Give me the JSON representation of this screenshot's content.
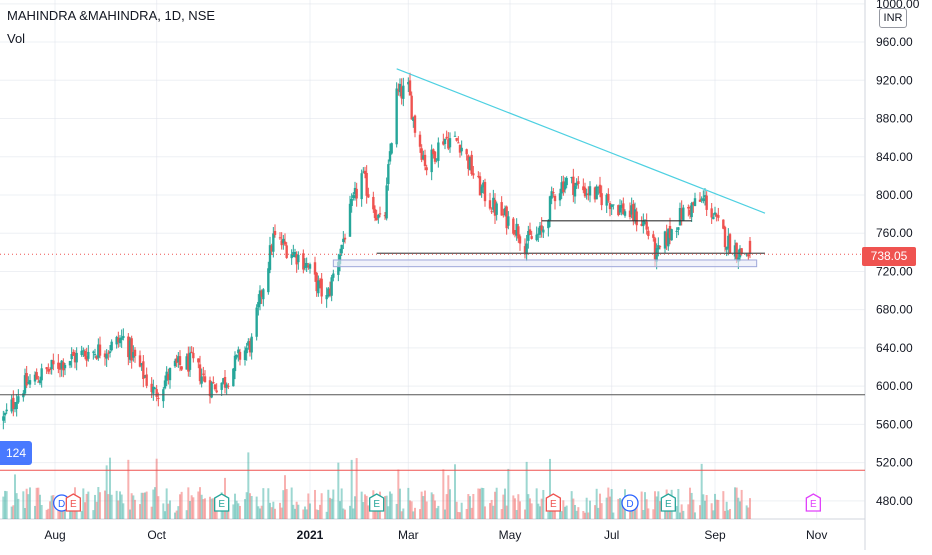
{
  "header": {
    "title": "MAHINDRA &MAHINDRA, 1D, NSE",
    "volume_label": "Vol",
    "currency": "INR"
  },
  "last_price": {
    "label": "738.05",
    "value": 738.05,
    "color": "#ef5350"
  },
  "side_marker": {
    "label": "124",
    "color": "#2962ff"
  },
  "colors": {
    "up": "#26a69a",
    "down": "#ef5350",
    "trendline": "#4dd0e1",
    "grid": "#e0e3eb"
  },
  "events": [
    {
      "type": "D",
      "date": "2020-08-05"
    },
    {
      "type": "E",
      "date": "2020-08-12"
    },
    {
      "type": "E",
      "date": "2020-11-09"
    },
    {
      "type": "E",
      "date": "2021-02-10"
    },
    {
      "type": "E",
      "date": "2021-05-27"
    },
    {
      "type": "D",
      "date": "2021-07-12"
    },
    {
      "type": "E",
      "date": "2021-08-04"
    },
    {
      "type": "E",
      "date": "2021-10-30"
    }
  ],
  "chart_data": {
    "type": "candlestick",
    "title": "MAHINDRA &MAHINDRA, 1D, NSE",
    "y_unit": "INR",
    "y_ticks": [
      480,
      520,
      560,
      600,
      640,
      680,
      720,
      760,
      800,
      840,
      880,
      920,
      960,
      1000
    ],
    "y_tick_labels": [
      "480.00",
      "520.00",
      "560.00",
      "600.00",
      "640.00",
      "680.00",
      "720.00",
      "760.00",
      "800.00",
      "840.00",
      "880.00",
      "920.00",
      "960.00",
      "1000.00"
    ],
    "x_ticks": [
      {
        "label": "Aug",
        "date": "2020-08-01"
      },
      {
        "label": "Oct",
        "date": "2020-10-01"
      },
      {
        "label": "2021",
        "date": "2021-01-01"
      },
      {
        "label": "Mar",
        "date": "2021-03-01"
      },
      {
        "label": "May",
        "date": "2021-05-01"
      },
      {
        "label": "Jul",
        "date": "2021-07-01"
      },
      {
        "label": "Sep",
        "date": "2021-09-01"
      },
      {
        "label": "Nov",
        "date": "2021-11-01"
      }
    ],
    "x_range": [
      "2020-06-29",
      "2021-11-30"
    ],
    "y_range": [
      461,
      1004
    ],
    "price_path": [
      [
        "2020-07-01",
        565
      ],
      [
        "2020-07-13",
        600
      ],
      [
        "2020-07-24",
        612
      ],
      [
        "2020-08-05",
        625
      ],
      [
        "2020-08-20",
        635
      ],
      [
        "2020-09-02",
        640
      ],
      [
        "2020-09-11",
        650
      ],
      [
        "2020-09-22",
        615
      ],
      [
        "2020-09-30",
        592
      ],
      [
        "2020-10-12",
        620
      ],
      [
        "2020-10-22",
        625
      ],
      [
        "2020-11-02",
        600
      ],
      [
        "2020-11-11",
        605
      ],
      [
        "2020-11-20",
        632
      ],
      [
        "2020-11-27",
        645
      ],
      [
        "2020-12-02",
        690
      ],
      [
        "2020-12-10",
        755
      ],
      [
        "2020-12-18",
        745
      ],
      [
        "2020-12-29",
        730
      ],
      [
        "2021-01-04",
        710
      ],
      [
        "2021-01-11",
        690
      ],
      [
        "2021-01-18",
        735
      ],
      [
        "2021-01-25",
        780
      ],
      [
        "2021-02-01",
        820
      ],
      [
        "2021-02-08",
        790
      ],
      [
        "2021-02-14",
        760
      ],
      [
        "2021-02-18",
        845
      ],
      [
        "2021-02-22",
        905
      ],
      [
        "2021-03-01",
        910
      ],
      [
        "2021-03-05",
        870
      ],
      [
        "2021-03-12",
        830
      ],
      [
        "2021-03-22",
        860
      ],
      [
        "2021-04-01",
        855
      ],
      [
        "2021-04-12",
        810
      ],
      [
        "2021-04-22",
        785
      ],
      [
        "2021-05-03",
        770
      ],
      [
        "2021-05-10",
        750
      ],
      [
        "2021-05-20",
        760
      ],
      [
        "2021-05-27",
        800
      ],
      [
        "2021-06-03",
        815
      ],
      [
        "2021-06-15",
        805
      ],
      [
        "2021-06-29",
        795
      ],
      [
        "2021-07-12",
        780
      ],
      [
        "2021-07-21",
        770
      ],
      [
        "2021-07-28",
        735
      ],
      [
        "2021-08-03",
        755
      ],
      [
        "2021-08-12",
        780
      ],
      [
        "2021-08-20",
        790
      ],
      [
        "2021-08-26",
        795
      ],
      [
        "2021-09-02",
        770
      ],
      [
        "2021-09-09",
        750
      ],
      [
        "2021-09-16",
        740
      ],
      [
        "2021-09-22",
        738
      ]
    ],
    "drawings": [
      {
        "type": "trendline",
        "from": [
          "2021-02-22",
          932
        ],
        "to": [
          "2021-10-01",
          781
        ],
        "color": "#4dd0e1"
      },
      {
        "type": "horizontal_segment",
        "from": [
          "2021-02-10",
          739
        ],
        "to": [
          "2021-10-01",
          739
        ],
        "color": "#555555"
      },
      {
        "type": "horizontal_segment",
        "from": [
          "2021-05-20",
          773
        ],
        "to": [
          "2021-08-18",
          773
        ],
        "color": "#333333"
      },
      {
        "type": "rectangle",
        "from": [
          "2021-01-15",
          732
        ],
        "to": [
          "2021-09-26",
          725
        ],
        "color": "#9fa8da"
      },
      {
        "type": "horizontal_line",
        "y": 591,
        "color": "#555555"
      },
      {
        "type": "horizontal_line",
        "y": 512,
        "color": "#ef5350"
      }
    ]
  }
}
